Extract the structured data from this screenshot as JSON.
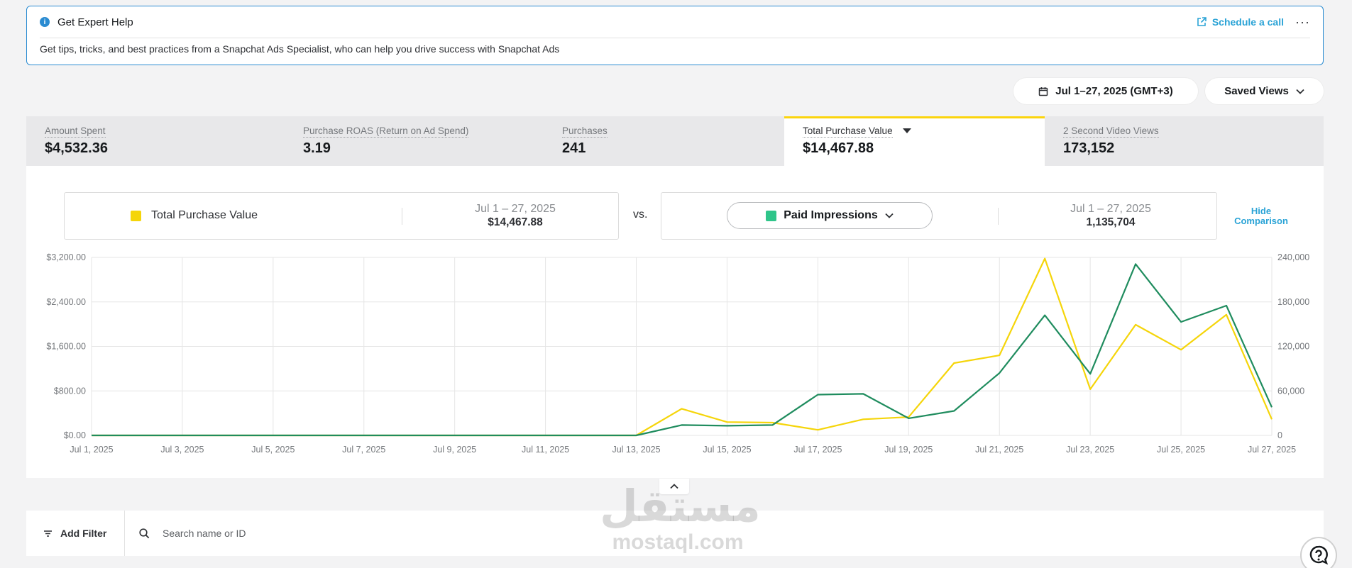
{
  "help": {
    "title": "Get Expert Help",
    "schedule_label": "Schedule a call",
    "more_label": "···",
    "body": "Get tips, tricks, and best practices from a Snapchat Ads Specialist, who can help you drive success with Snapchat Ads"
  },
  "toolbar": {
    "date_range": "Jul 1–27, 2025 (GMT+3)",
    "saved_views": "Saved Views"
  },
  "metrics": [
    {
      "label": "Amount Spent",
      "value": "$4,532.36"
    },
    {
      "label": "Purchase ROAS (Return on Ad Spend)",
      "value": "3.19"
    },
    {
      "label": "Purchases",
      "value": "241"
    },
    {
      "label": "Total Purchase Value",
      "value": "$14,467.88",
      "active": true
    },
    {
      "label": "2 Second Video Views",
      "value": "173,152"
    }
  ],
  "comparison": {
    "primary": {
      "name": "Total Purchase Value",
      "date": "Jul 1 – 27, 2025",
      "value": "$14,467.88",
      "color": "#f5d50a"
    },
    "vs_label": "vs.",
    "secondary": {
      "name": "Paid Impressions",
      "date": "Jul 1 – 27, 2025",
      "value": "1,135,704",
      "color": "#2fc58a"
    },
    "hide_label_1": "Hide",
    "hide_label_2": "Comparison"
  },
  "chart_data": {
    "type": "line",
    "x": [
      "Jul 1, 2025",
      "Jul 2, 2025",
      "Jul 3, 2025",
      "Jul 4, 2025",
      "Jul 5, 2025",
      "Jul 6, 2025",
      "Jul 7, 2025",
      "Jul 8, 2025",
      "Jul 9, 2025",
      "Jul 10, 2025",
      "Jul 11, 2025",
      "Jul 12, 2025",
      "Jul 13, 2025",
      "Jul 14, 2025",
      "Jul 15, 2025",
      "Jul 16, 2025",
      "Jul 17, 2025",
      "Jul 18, 2025",
      "Jul 19, 2025",
      "Jul 20, 2025",
      "Jul 21, 2025",
      "Jul 22, 2025",
      "Jul 23, 2025",
      "Jul 24, 2025",
      "Jul 25, 2025",
      "Jul 26, 2025",
      "Jul 27, 2025"
    ],
    "x_tick_labels": [
      "Jul 1, 2025",
      "Jul 3, 2025",
      "Jul 5, 2025",
      "Jul 7, 2025",
      "Jul 9, 2025",
      "Jul 11, 2025",
      "Jul 13, 2025",
      "Jul 15, 2025",
      "Jul 17, 2025",
      "Jul 19, 2025",
      "Jul 21, 2025",
      "Jul 23, 2025",
      "Jul 25, 2025",
      "Jul 27, 2025"
    ],
    "y_left_ticks": [
      "$0.00",
      "$800.00",
      "$1,600.00",
      "$2,400.00",
      "$3,200.00"
    ],
    "y_right_ticks": [
      "0",
      "60,000",
      "120,000",
      "180,000",
      "240,000"
    ],
    "ylim_left": [
      0,
      3200
    ],
    "ylim_right": [
      0,
      240000
    ],
    "grid": true,
    "series": [
      {
        "name": "Total Purchase Value",
        "axis": "left",
        "color": "#f5d50a",
        "values": [
          0,
          0,
          0,
          0,
          0,
          0,
          0,
          0,
          0,
          0,
          0,
          0,
          0,
          480,
          240,
          230,
          100,
          290,
          330,
          1300,
          1440,
          3180,
          830,
          1990,
          1540,
          2170,
          290
        ]
      },
      {
        "name": "Paid Impressions",
        "axis": "right",
        "color": "#1f8c5e",
        "values": [
          0,
          0,
          0,
          0,
          0,
          0,
          0,
          0,
          0,
          0,
          0,
          0,
          0,
          14000,
          13000,
          14000,
          55000,
          56000,
          23000,
          33000,
          84000,
          162000,
          83000,
          231000,
          153000,
          175000,
          38000
        ]
      }
    ]
  },
  "filter": {
    "add_filter": "Add Filter",
    "search_placeholder": "Search name or ID"
  },
  "watermark": {
    "arabic": "مستقل",
    "latin": "mostaql.com"
  }
}
